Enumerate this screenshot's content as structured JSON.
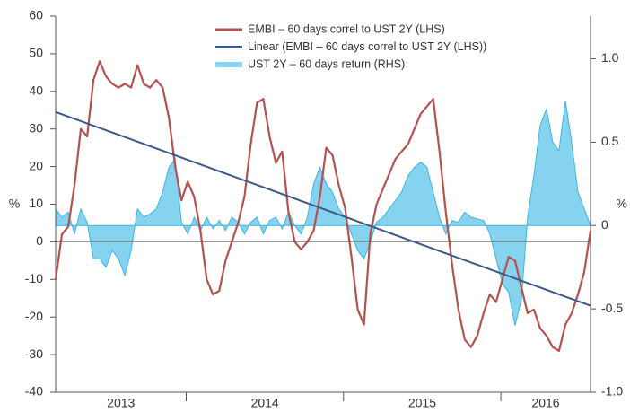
{
  "chart_data": {
    "type": "line",
    "y_label": "%",
    "y2_label": "%",
    "legend": "top",
    "x": [
      2013.17,
      2013.21,
      2013.25,
      2013.29,
      2013.33,
      2013.37,
      2013.41,
      2013.45,
      2013.49,
      2013.53,
      2013.57,
      2013.61,
      2013.65,
      2013.69,
      2013.73,
      2013.77,
      2013.81,
      2013.85,
      2013.89,
      2013.93,
      2013.97,
      2014.01,
      2014.05,
      2014.09,
      2014.13,
      2014.17,
      2014.21,
      2014.25,
      2014.29,
      2014.33,
      2014.37,
      2014.41,
      2014.45,
      2014.49,
      2014.53,
      2014.57,
      2014.61,
      2014.65,
      2014.69,
      2014.73,
      2014.77,
      2014.81,
      2014.85,
      2014.89,
      2014.93,
      2014.97,
      2015.01,
      2015.05,
      2015.09,
      2015.13,
      2015.17,
      2015.21,
      2015.25,
      2015.29,
      2015.33,
      2015.37,
      2015.41,
      2015.45,
      2015.49,
      2015.53,
      2015.57,
      2015.61,
      2015.65,
      2015.69,
      2015.73,
      2015.77,
      2015.81,
      2015.85,
      2015.89,
      2015.93,
      2015.97,
      2016.01,
      2016.05,
      2016.09,
      2016.13,
      2016.17,
      2016.21,
      2016.25,
      2016.29,
      2016.33,
      2016.37,
      2016.41,
      2016.45,
      2016.49,
      2016.53,
      2016.57
    ],
    "xlim": [
      2013.17,
      2016.57
    ],
    "xticks": [
      2014,
      2015,
      2016
    ],
    "year_labels": [
      "2013",
      "2014",
      "2015",
      "2016"
    ],
    "ylim": [
      -40,
      60
    ],
    "yticks": [
      -40,
      -30,
      -20,
      -10,
      0,
      10,
      20,
      30,
      40,
      50,
      60
    ],
    "y2lim": [
      -1.0,
      1.256
    ],
    "y2ticks": [
      {
        "value": -1.0,
        "label": "-1.0"
      },
      -0.5,
      0,
      0.5,
      {
        "value": 1.0,
        "label": "1.0"
      }
    ],
    "series": [
      {
        "name": "EMBI – 60 days correl to UST 2Y (LHS)",
        "kind": "line",
        "color": "#b5514f",
        "values": [
          -10,
          2,
          4,
          15,
          30,
          28,
          43,
          48,
          44,
          42,
          41,
          42,
          41,
          47,
          42,
          41,
          43,
          41,
          33,
          20,
          11,
          16,
          12,
          3,
          -10,
          -14,
          -13,
          -5,
          0,
          5,
          12,
          26,
          37,
          38,
          28,
          21,
          24,
          8,
          0,
          -2,
          0,
          3,
          12,
          25,
          23,
          15,
          9,
          -4,
          -18,
          -22,
          2,
          10,
          14,
          18,
          22,
          24,
          26,
          30,
          34,
          36,
          38,
          24,
          8,
          -6,
          -18,
          -26,
          -28,
          -25,
          -19,
          -14,
          -16,
          -10,
          -4,
          -5,
          -12,
          -19,
          -18,
          -23,
          -25,
          -28,
          -29,
          -22,
          -19,
          -14,
          -8,
          3
        ]
      },
      {
        "name": "Linear (EMBI – 60 days correl to UST 2Y (LHS))",
        "kind": "line",
        "color": "#3a5a8c",
        "x": [
          2013.17,
          2016.57
        ],
        "values": [
          34.5,
          -17
        ]
      },
      {
        "name": "UST 2Y – 60 days return (RHS)",
        "kind": "area",
        "axis": "y2",
        "color": "#3bb6e3",
        "fill": "#86d3f0",
        "values": [
          0.1,
          0.05,
          0.08,
          -0.05,
          0.1,
          0.02,
          -0.2,
          -0.2,
          -0.25,
          -0.15,
          -0.2,
          -0.3,
          -0.15,
          0.1,
          0.05,
          0.07,
          0.1,
          0.2,
          0.35,
          0.4,
          0.02,
          -0.05,
          0.05,
          -0.03,
          0.05,
          -0.02,
          0.03,
          -0.03,
          0.05,
          0.02,
          -0.05,
          0.02,
          0.05,
          -0.05,
          0.03,
          0.05,
          -0.02,
          0.08,
          0,
          -0.05,
          0.05,
          0.25,
          0.35,
          0.25,
          0.2,
          0.1,
          0.05,
          -0.05,
          -0.15,
          -0.2,
          -0.1,
          0.02,
          0.05,
          0.1,
          0.15,
          0.2,
          0.3,
          0.35,
          0.38,
          0.35,
          0.2,
          0.05,
          -0.05,
          0.03,
          0.02,
          0.08,
          0.05,
          0.04,
          0.03,
          -0.05,
          -0.2,
          -0.35,
          -0.4,
          -0.6,
          -0.45,
          0.05,
          0.3,
          0.6,
          0.7,
          0.5,
          0.45,
          0.75,
          0.5,
          0.2,
          0.1,
          0
        ]
      }
    ]
  }
}
